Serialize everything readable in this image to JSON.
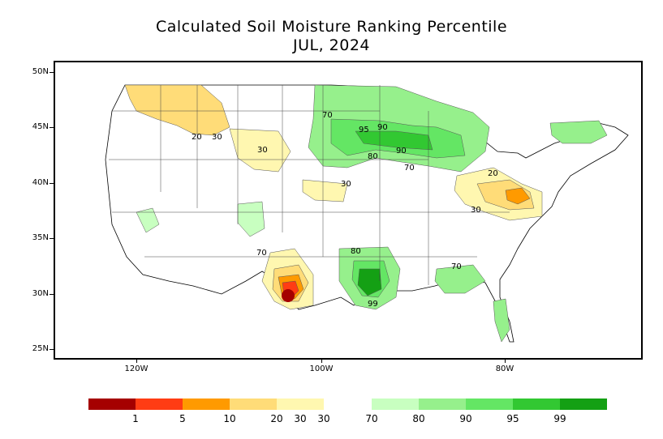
{
  "title": "Calculated Soil Moisture Ranking Percentile",
  "subtitle": "JUL, 2024",
  "lat_ticks": [
    "50N",
    "45N",
    "40N",
    "35N",
    "30N",
    "25N"
  ],
  "lon_ticks": [
    "120W",
    "100W",
    "80W"
  ],
  "contour_labels": [
    "20",
    "30",
    "30",
    "30",
    "70",
    "70",
    "95",
    "90",
    "80",
    "90",
    "70",
    "20",
    "30",
    "80",
    "99",
    "70"
  ],
  "colorbar": {
    "dry": [
      {
        "color": "#a50000",
        "label": "1"
      },
      {
        "color": "#ff3c14",
        "label": "5"
      },
      {
        "color": "#ff9a00",
        "label": "10"
      },
      {
        "color": "#ffdc78",
        "label": "20"
      },
      {
        "color": "#fff7b0",
        "label": "30"
      }
    ],
    "wet": [
      {
        "color": "#c8ffc0",
        "label": "70"
      },
      {
        "color": "#96f08c",
        "label": "80"
      },
      {
        "color": "#64e664",
        "label": "90"
      },
      {
        "color": "#32c832",
        "label": "95"
      },
      {
        "color": "#14a014",
        "label": "99"
      }
    ],
    "dry_end_label": "30",
    "wet_start_label": "70"
  }
}
